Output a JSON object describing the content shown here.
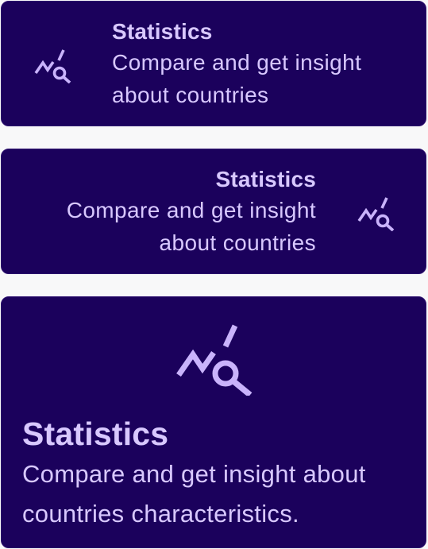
{
  "cards": [
    {
      "icon": "chart-search-icon",
      "title": "Statistics",
      "description": "Compare and get insight about countries"
    },
    {
      "icon": "chart-search-icon",
      "title": "Statistics",
      "description": "Compare and get insight about countries"
    },
    {
      "icon": "chart-search-icon",
      "title": "Statistics",
      "description": "Compare and get insight about countries characteristics."
    }
  ],
  "colors": {
    "card_background": "#1b015c",
    "text": "#d8c8ff",
    "icon": "#c9b3fb",
    "page_background": "#f8f8f9"
  }
}
